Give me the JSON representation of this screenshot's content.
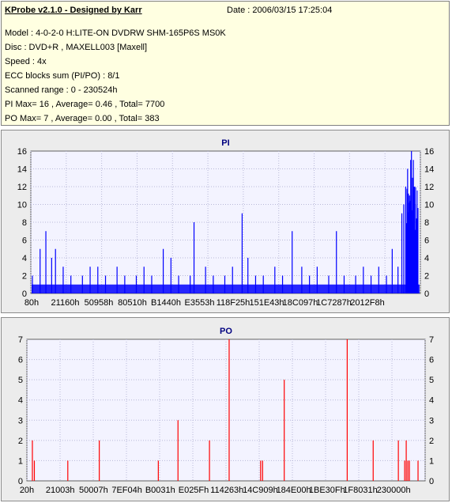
{
  "header": {
    "title": "KProbe v2.1.0 - Designed by Karr",
    "date": "Date : 2006/03/15 17:25:04",
    "lines": [
      "Model : 4-0-2-0 H:LITE-ON DVDRW SHM-165P6S MS0K",
      "Disc : DVD+R , MAXELL003 [Maxell]",
      "Speed : 4x",
      "ECC blocks sum (PI/PO) : 8/1",
      "Scanned range : 0 - 230524h",
      "PI Max= 16 , Average= 0.46 , Total= 7700",
      "PO Max= 7 , Average= 0.00 , Total= 383"
    ]
  },
  "colors": {
    "pi": "#0000ff",
    "po": "#ff0000",
    "plot_bg": "#f3f3ff"
  },
  "chart_data": [
    {
      "type": "bar",
      "title": "PI",
      "ylim": [
        0,
        16
      ],
      "yticks": [
        "0",
        "2",
        "4",
        "6",
        "8",
        "10",
        "12",
        "14",
        "16"
      ],
      "xticks": [
        "80h",
        "21160h",
        "50958h",
        "80510h",
        "B1440h",
        "E3553h",
        "118F25h",
        "151E43h",
        "18C097h",
        "1C7287h",
        "2012F8h"
      ],
      "grid": true,
      "baseline": 1,
      "spikes": [
        [
          0.0,
          2
        ],
        [
          0.02,
          5
        ],
        [
          0.035,
          7
        ],
        [
          0.05,
          4
        ],
        [
          0.06,
          5
        ],
        [
          0.08,
          3
        ],
        [
          0.1,
          2
        ],
        [
          0.13,
          2
        ],
        [
          0.15,
          3
        ],
        [
          0.17,
          3
        ],
        [
          0.19,
          2
        ],
        [
          0.22,
          3
        ],
        [
          0.24,
          2
        ],
        [
          0.27,
          2
        ],
        [
          0.29,
          3
        ],
        [
          0.31,
          2
        ],
        [
          0.34,
          5
        ],
        [
          0.36,
          4
        ],
        [
          0.38,
          2
        ],
        [
          0.41,
          2
        ],
        [
          0.42,
          8
        ],
        [
          0.45,
          3
        ],
        [
          0.47,
          2
        ],
        [
          0.5,
          2
        ],
        [
          0.52,
          3
        ],
        [
          0.545,
          9
        ],
        [
          0.56,
          4
        ],
        [
          0.58,
          2
        ],
        [
          0.6,
          2
        ],
        [
          0.63,
          3
        ],
        [
          0.65,
          2
        ],
        [
          0.675,
          7
        ],
        [
          0.7,
          3
        ],
        [
          0.72,
          2
        ],
        [
          0.74,
          3
        ],
        [
          0.77,
          2
        ],
        [
          0.79,
          7
        ],
        [
          0.81,
          2
        ],
        [
          0.84,
          2
        ],
        [
          0.86,
          3
        ],
        [
          0.88,
          2
        ],
        [
          0.9,
          3
        ],
        [
          0.92,
          2
        ],
        [
          0.935,
          5
        ],
        [
          0.95,
          3
        ],
        [
          0.96,
          9
        ],
        [
          0.965,
          10
        ],
        [
          0.97,
          12
        ],
        [
          0.975,
          14
        ],
        [
          0.98,
          11
        ],
        [
          0.983,
          15
        ],
        [
          0.985,
          16
        ],
        [
          0.988,
          13
        ],
        [
          0.99,
          15
        ],
        [
          0.993,
          12
        ],
        [
          0.996,
          10
        ]
      ]
    },
    {
      "type": "bar",
      "title": "PO",
      "ylim": [
        0,
        7
      ],
      "yticks": [
        "0",
        "1",
        "2",
        "3",
        "4",
        "5",
        "6",
        "7"
      ],
      "xticks": [
        "20h",
        "21003h",
        "50007h",
        "7EF04h",
        "B0031h",
        "E025Fh",
        "114263h",
        "14C909h",
        "184E00h",
        "1BE30Fh",
        "1F8031h",
        "230000h"
      ],
      "grid": true,
      "spikes": [
        [
          0.01,
          2
        ],
        [
          0.015,
          1
        ],
        [
          0.1,
          1
        ],
        [
          0.18,
          2
        ],
        [
          0.33,
          1
        ],
        [
          0.38,
          3
        ],
        [
          0.46,
          2
        ],
        [
          0.51,
          7
        ],
        [
          0.59,
          1
        ],
        [
          0.595,
          1
        ],
        [
          0.65,
          5
        ],
        [
          0.81,
          7
        ],
        [
          0.94,
          2
        ],
        [
          0.99,
          1
        ],
        [
          1.095,
          2
        ],
        [
          1.195,
          1
        ],
        [
          1.2,
          2
        ],
        [
          1.205,
          1
        ],
        [
          1.21,
          1
        ]
      ]
    }
  ]
}
